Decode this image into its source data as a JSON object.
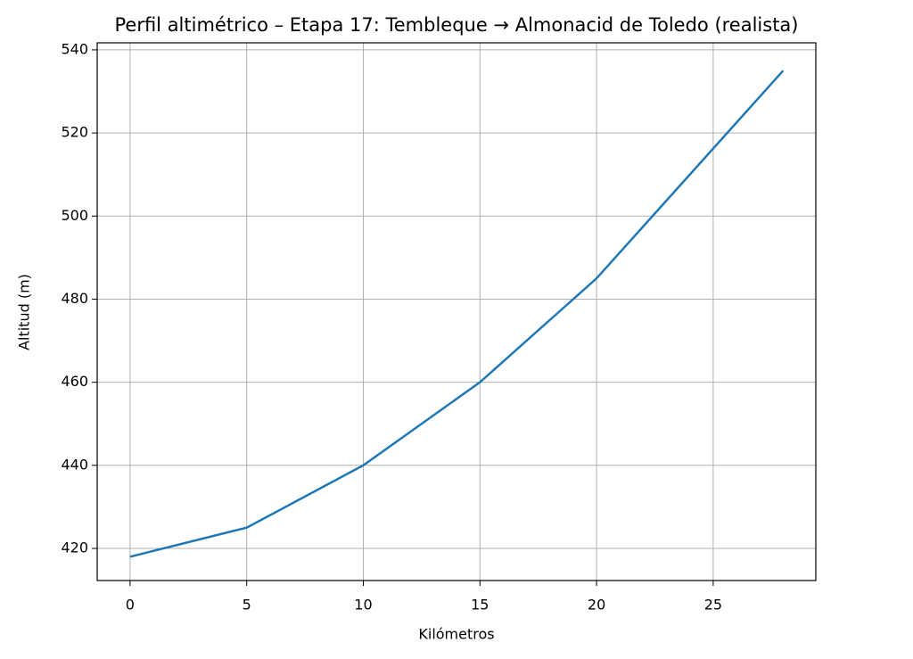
{
  "chart_data": {
    "type": "line",
    "title": "Perfil altimétrico – Etapa 17: Tembleque → Almonacid de Toledo (realista)",
    "x_label": "Kilómetros",
    "y_label": "Altitud (m)",
    "x": [
      0,
      5,
      10,
      15,
      20,
      28
    ],
    "series": [
      {
        "color": "#1f77b4",
        "values": [
          418,
          425,
          440,
          460,
          485,
          535
        ]
      }
    ],
    "xlim": [
      -1.41,
      29.4
    ],
    "ylim": [
      412.27,
      541.7
    ],
    "xticks": [
      0,
      5,
      10,
      15,
      20,
      25
    ],
    "yticks": [
      420,
      440,
      460,
      480,
      500,
      520,
      540
    ],
    "grid": true
  }
}
